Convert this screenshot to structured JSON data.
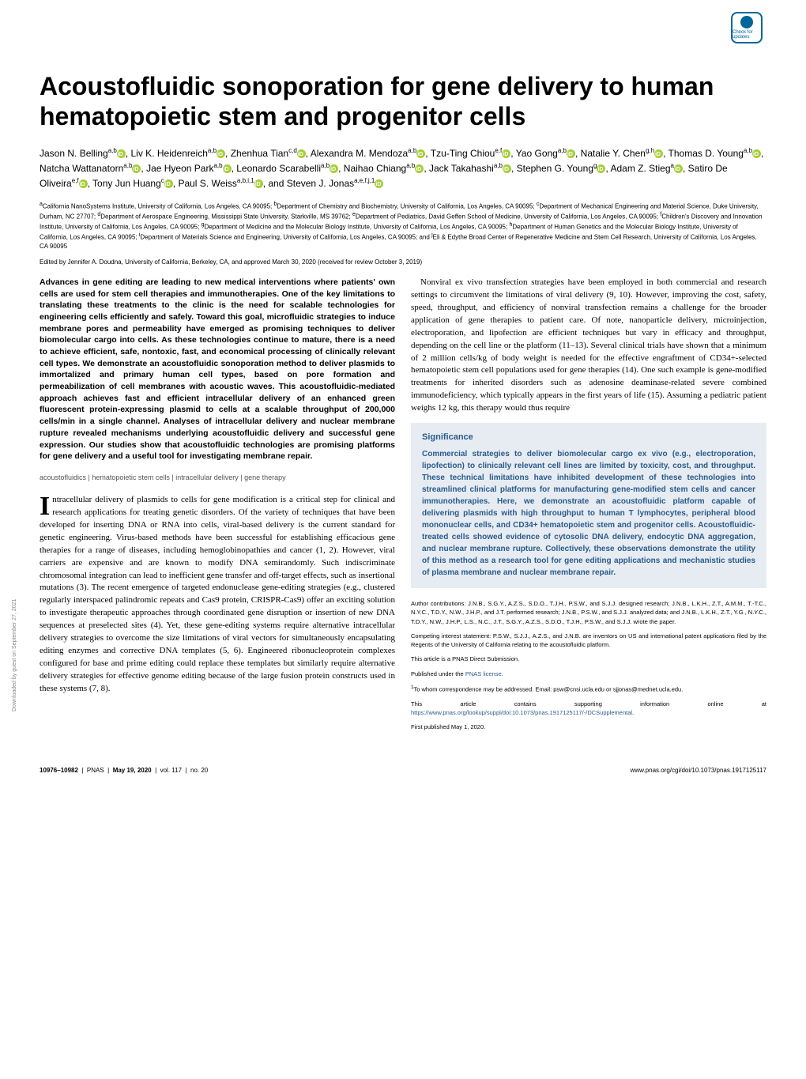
{
  "check_updates": "Check for updates",
  "title": "Acoustofluidic sonoporation for gene delivery to human hematopoietic stem and progenitor cells",
  "authors_html": "Jason N. Belling<sup>a,b</sup>, Liv K. Heidenreich<sup>a,b</sup>, Zhenhua Tian<sup>c,d</sup>, Alexandra M. Mendoza<sup>a,b</sup>, Tzu-Ting Chiou<sup>e,f</sup>, Yao Gong<sup>a,b</sup>, Natalie Y. Chen<sup>g,h</sup>, Thomas D. Young<sup>a,b</sup>, Natcha Wattanatorn<sup>a,b</sup>, Jae Hyeon Park<sup>a,b</sup>, Leonardo Scarabelli<sup>a,b</sup>, Naihao Chiang<sup>a,b</sup>, Jack Takahashi<sup>a,b</sup>, Stephen G. Young<sup>g</sup>, Adam Z. Stieg<sup>a</sup>, Satiro De Oliveira<sup>e,f</sup>, Tony Jun Huang<sup>c</sup>, Paul S. Weiss<sup>a,b,i,1</sup>, and Steven J. Jonas<sup>a,e,f,j,1</sup>",
  "affiliations": "<sup>a</sup>California NanoSystems Institute, University of California, Los Angeles, CA 90095; <sup>b</sup>Department of Chemistry and Biochemistry, University of California, Los Angeles, CA 90095; <sup>c</sup>Department of Mechanical Engineering and Material Science, Duke University, Durham, NC 27707; <sup>d</sup>Department of Aerospace Engineering, Mississippi State University, Starkville, MS 39762; <sup>e</sup>Department of Pediatrics, David Geffen School of Medicine, University of California, Los Angeles, CA 90095; <sup>f</sup>Children's Discovery and Innovation Institute, University of California, Los Angeles, CA 90095; <sup>g</sup>Department of Medicine and the Molecular Biology Institute, University of California, Los Angeles, CA 90095; <sup>h</sup>Department of Human Genetics and the Molecular Biology Institute, University of California, Los Angeles, CA 90095; <sup>i</sup>Department of Materials Science and Engineering, University of California, Los Angeles, CA 90095; and <sup>j</sup>Eli & Edythe Broad Center of Regenerative Medicine and Stem Cell Research, University of California, Los Angeles, CA 90095",
  "edited_by": "Edited by Jennifer A. Doudna, University of California, Berkeley, CA, and approved March 30, 2020 (received for review October 3, 2019)",
  "abstract": "Advances in gene editing are leading to new medical interventions where patients' own cells are used for stem cell therapies and immunotherapies. One of the key limitations to translating these treatments to the clinic is the need for scalable technologies for engineering cells efficiently and safely. Toward this goal, microfluidic strategies to induce membrane pores and permeability have emerged as promising techniques to deliver biomolecular cargo into cells. As these technologies continue to mature, there is a need to achieve efficient, safe, nontoxic, fast, and economical processing of clinically relevant cell types. We demonstrate an acoustofluidic sonoporation method to deliver plasmids to immortalized and primary human cell types, based on pore formation and permeabilization of cell membranes with acoustic waves. This acoustofluidic-mediated approach achieves fast and efficient intracellular delivery of an enhanced green fluorescent protein-expressing plasmid to cells at a scalable throughput of 200,000 cells/min in a single channel. Analyses of intracellular delivery and nuclear membrane rupture revealed mechanisms underlying acoustofluidic delivery and successful gene expression. Our studies show that acoustofluidic technologies are promising platforms for gene delivery and a useful tool for investigating membrane repair.",
  "keywords": "acoustofluidics | hematopoietic stem cells | intracellular delivery | gene therapy",
  "body_col1_first": "ntracellular delivery of plasmids to cells for gene modification is a critical step for clinical and research applications for treating genetic disorders. Of the variety of techniques that have been developed for inserting DNA or RNA into cells, viral-based delivery is the current standard for genetic engineering. Virus-based methods have been successful for establishing efficacious gene therapies for a range of diseases, including hemoglobinopathies and cancer (1, 2). However, viral carriers are expensive and are known to modify DNA semirandomly. Such indiscriminate chromosomal integration can lead to inefficient gene transfer and off-target effects, such as insertional mutations (3). The recent emergence of targeted endonuclease gene-editing strategies (e.g., clustered regularly interspaced palindromic repeats and Cas9 protein, CRISPR-Cas9) offer an exciting solution to investigate therapeutic approaches through coordinated gene disruption or insertion of new DNA sequences at preselected sites (4). Yet, these gene-editing systems require alternative intracellular delivery strategies to overcome the size limitations of viral vectors for simultaneously encapsulating editing enzymes and corrective DNA templates (5, 6). Engineered ribonucleoprotein complexes configured for base and prime editing could replace these templates but similarly require alternative delivery strategies for effective genome editing because of the large fusion protein constructs used in these systems (7, 8).",
  "body_col2_top": "Nonviral ex vivo transfection strategies have been employed in both commercial and research settings to circumvent the limitations of viral delivery (9, 10). However, improving the cost, safety, speed, throughput, and efficiency of nonviral transfection remains a challenge for the broader application of gene therapies to patient care. Of note, nanoparticle delivery, microinjection, electroporation, and lipofection are efficient techniques but vary in efficacy and throughput, depending on the cell line or the platform (11–13). Several clinical trials have shown that a minimum of 2 million cells/kg of body weight is needed for the effective engraftment of CD34+-selected hematopoietic stem cell populations used for gene therapies (14). One such example is gene-modified treatments for inherited disorders such as adenosine deaminase-related severe combined immunodeficiency, which typically appears in the first years of life (15). Assuming a pediatric patient weighs 12 kg, this therapy would thus require",
  "significance_title": "Significance",
  "significance_text": "Commercial strategies to deliver biomolecular cargo ex vivo (e.g., electroporation, lipofection) to clinically relevant cell lines are limited by toxicity, cost, and throughput. These technical limitations have inhibited development of these technologies into streamlined clinical platforms for manufacturing gene-modified stem cells and cancer immunotherapies. Here, we demonstrate an acoustofluidic platform capable of delivering plasmids with high throughput to human T lymphocytes, peripheral blood mononuclear cells, and CD34+ hematopoietic stem and progenitor cells. Acoustofluidic-treated cells showed evidence of cytosolic DNA delivery, endocytic DNA aggregation, and nuclear membrane rupture. Collectively, these observations demonstrate the utility of this method as a research tool for gene editing applications and mechanistic studies of plasma membrane and nuclear membrane repair.",
  "metadata": {
    "author_contributions": "Author contributions: J.N.B., S.G.Y., A.Z.S., S.D.O., T.J.H., P.S.W., and S.J.J. designed research; J.N.B., L.K.H., Z.T., A.M.M., T.-T.C., N.Y.C., T.D.Y., N.W., J.H.P., and J.T. performed research; J.N.B., P.S.W., and S.J.J. analyzed data; and J.N.B., L.K.H., Z.T., Y.G., N.Y.C., T.D.Y., N.W., J.H.P., L.S., N.C., J.T., S.G.Y., A.Z.S., S.D.O., T.J.H., P.S.W., and S.J.J. wrote the paper.",
    "competing": "Competing interest statement: P.S.W., S.J.J., A.Z.S., and J.N.B. are inventors on US and international patent applications filed by the Regents of the University of California relating to the acoustofluidic platform.",
    "direct": "This article is a PNAS Direct Submission.",
    "license": "Published under the ",
    "license_link": "PNAS license",
    "correspondence": "To whom correspondence may be addressed. Email: psw@cnsi.ucla.edu or sjjonas@mednet.ucla.edu.",
    "supporting": "This article contains supporting information online at ",
    "supporting_link": "https://www.pnas.org/lookup/suppl/doi:10.1073/pnas.1917125117/-/DCSupplemental",
    "first_published": "First published May 1, 2020."
  },
  "footer": {
    "left_pages": "10976–10982",
    "left_journal": "PNAS",
    "left_date": "May 19, 2020",
    "left_vol": "vol. 117",
    "left_no": "no. 20",
    "right": "www.pnas.org/cgi/doi/10.1073/pnas.1917125117"
  },
  "side_text": "Downloaded by guest on September 27, 2021",
  "colors": {
    "significance_bg": "#e6ecf2",
    "significance_text": "#2a5a8a",
    "orcid_green": "#a6ce39",
    "link_blue": "#2a5a8a"
  }
}
